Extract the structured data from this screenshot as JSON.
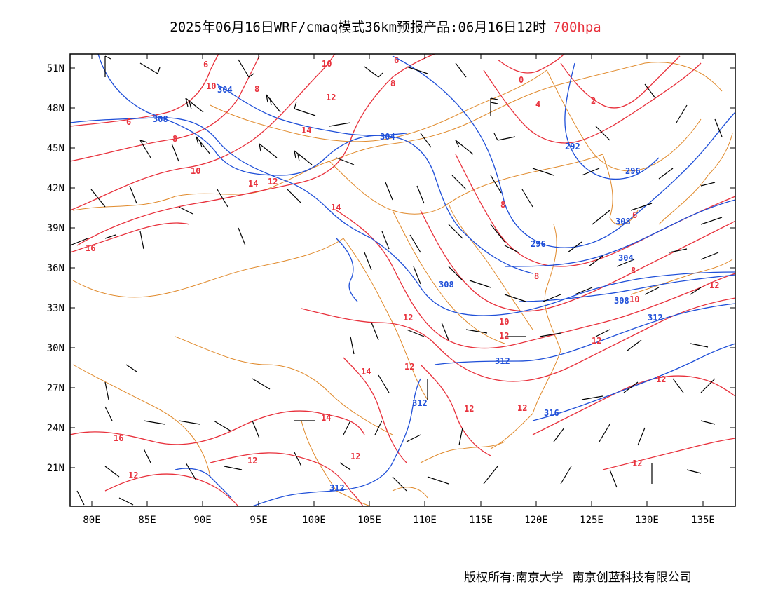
{
  "title": {
    "main": "2025年06月16日WRF/cmaq模式36km预报产品:06月16日12时",
    "level": "700hpa"
  },
  "axes": {
    "lat_labels": [
      "51N",
      "48N",
      "45N",
      "42N",
      "39N",
      "36N",
      "33N",
      "30N",
      "27N",
      "24N",
      "21N"
    ],
    "lon_labels": [
      "80E",
      "85E",
      "90E",
      "95E",
      "100E",
      "105E",
      "110E",
      "115E",
      "120E",
      "125E",
      "130E",
      "135E"
    ]
  },
  "colors": {
    "height_contour": "#1f4fd8",
    "temperature_contour": "#e8313c",
    "boundary": "#e08a2c",
    "wind_barb": "#000000"
  },
  "height_labels": [
    "304",
    "308",
    "304",
    "292",
    "296",
    "308",
    "296",
    "304",
    "308",
    "308",
    "312",
    "312",
    "312",
    "316",
    "312"
  ],
  "temperature_labels": [
    "6",
    "10",
    "10",
    "8",
    "12",
    "8",
    "6",
    "8",
    "4",
    "2",
    "0",
    "6",
    "14",
    "10",
    "14",
    "12",
    "14",
    "16",
    "8",
    "8",
    "8",
    "6",
    "10",
    "12",
    "10",
    "12",
    "14",
    "12",
    "12",
    "12",
    "12",
    "14",
    "12",
    "12",
    "12",
    "12",
    "12",
    "16",
    "12"
  ],
  "copyright": {
    "left": "版权所有:南京大学",
    "right": "南京创蓝科技有限公司"
  }
}
